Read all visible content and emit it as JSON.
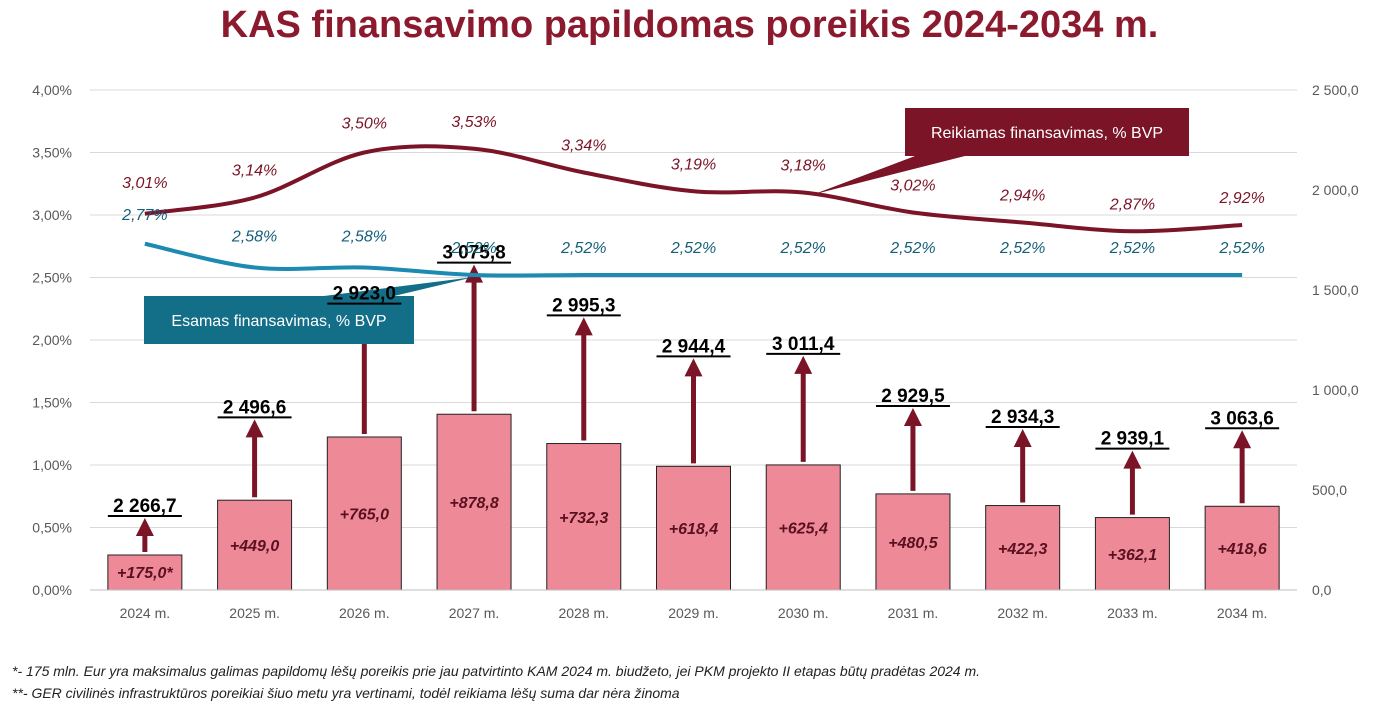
{
  "title": "KAS finansavimo papildomas poreikis 2024-2034 m.",
  "footnotes": [
    "*- 175 mln. Eur yra maksimalus galimas papildomų lėšų poreikis prie jau patvirtinto KAM 2024 m. biudžeto, jei PKM projekto II etapas būtų pradėtas 2024 m.",
    "**- GER civilinės infrastruktūros poreikiai šiuo metu yra vertinami, todėl reikiama lėšų suma dar nėra žinoma"
  ],
  "chart_data": {
    "type": "bar+line",
    "categories": [
      "2024 m.",
      "2025 m.",
      "2026 m.",
      "2027 m.",
      "2028 m.",
      "2029 m.",
      "2030 m.",
      "2031 m.",
      "2032 m.",
      "2033 m.",
      "2034 m."
    ],
    "left_axis": {
      "ticks": [
        "0,00%",
        "0,50%",
        "1,00%",
        "1,50%",
        "2,00%",
        "2,50%",
        "3,00%",
        "3,50%",
        "4,00%"
      ],
      "ylim": [
        0,
        4
      ]
    },
    "right_axis": {
      "ticks": [
        "0,0",
        "500,0",
        "1 000,0",
        "1 500,0",
        "2 000,0",
        "2 500,0"
      ],
      "ylim": [
        0,
        2500
      ]
    },
    "bars": {
      "values": [
        175.0,
        449.0,
        765.0,
        878.8,
        732.3,
        618.4,
        625.4,
        480.5,
        422.3,
        362.1,
        418.6
      ],
      "labels": [
        "+175,0*",
        "+449,0",
        "+765,0",
        "+878,8",
        "+732,3",
        "+618,4",
        "+625,4",
        "+480,5",
        "+422,3",
        "+362,1",
        "+418,6"
      ],
      "color": "#EE8A98",
      "axis": "right"
    },
    "totals": {
      "labels": [
        "2 266,7",
        "2 496,6",
        "2 923,0",
        "3 075,8",
        "2 995,3",
        "2 944,4",
        "3 011,4",
        "2 929,5",
        "2 934,3",
        "2 939,1",
        "3 063,6"
      ],
      "arrow_color": "#7A1426"
    },
    "series": [
      {
        "name": "Reikiamas finansavimas, % BVP",
        "values": [
          3.01,
          3.14,
          3.5,
          3.53,
          3.34,
          3.19,
          3.18,
          3.02,
          2.94,
          2.87,
          2.92
        ],
        "labels": [
          "3,01%",
          "3,14%",
          "3,50%",
          "3,53%",
          "3,34%",
          "3,19%",
          "3,18%",
          "3,02%",
          "2,94%",
          "2,87%",
          "2,92%"
        ],
        "color": "#7A1426"
      },
      {
        "name": "Esamas finansavimas, % BVP",
        "values": [
          2.77,
          2.58,
          2.58,
          2.52,
          2.52,
          2.52,
          2.52,
          2.52,
          2.52,
          2.52,
          2.52
        ],
        "labels": [
          "2,77%",
          "2,58%",
          "2,58%",
          "2,52%",
          "2,52%",
          "2,52%",
          "2,52%",
          "2,52%",
          "2,52%",
          "2,52%",
          "2,52%"
        ],
        "color": "#1C8AB1"
      }
    ],
    "callouts": [
      {
        "text": "Reikiamas finansavimas, % BVP",
        "color": "#7A1426",
        "series": 0
      },
      {
        "text": "Esamas finansavimas, % BVP",
        "color": "#136E88",
        "series": 1
      }
    ],
    "grid": true,
    "legend": "callouts"
  }
}
